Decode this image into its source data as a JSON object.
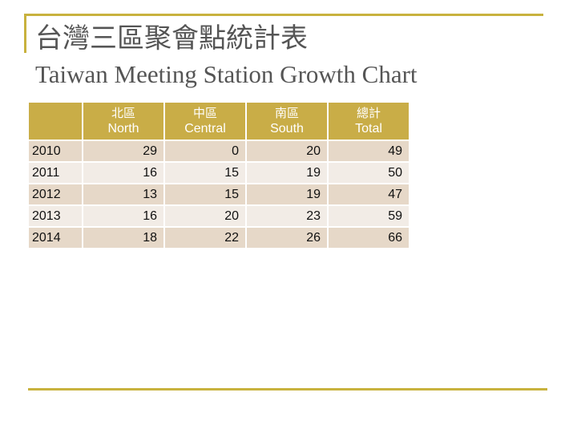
{
  "slide": {
    "title_cn": "台灣三區聚會點統計表",
    "title_en": "Taiwan Meeting Station Growth Chart"
  },
  "table": {
    "columns": [
      {
        "cn": "",
        "en": ""
      },
      {
        "cn": "北區",
        "en": "North"
      },
      {
        "cn": "中區",
        "en": "Central"
      },
      {
        "cn": "南區",
        "en": "South"
      },
      {
        "cn": "總計",
        "en": "Total"
      }
    ],
    "rows": [
      {
        "year": "2010",
        "north": "29",
        "central": "0",
        "south": "20",
        "total": "49"
      },
      {
        "year": "2011",
        "north": "16",
        "central": "15",
        "south": "19",
        "total": "50"
      },
      {
        "year": "2012",
        "north": "13",
        "central": "15",
        "south": "19",
        "total": "47"
      },
      {
        "year": "2013",
        "north": "16",
        "central": "20",
        "south": "23",
        "total": "59"
      },
      {
        "year": "2014",
        "north": "18",
        "central": "22",
        "south": "26",
        "total": "66"
      }
    ]
  },
  "colors": {
    "accent": "#c8b23e",
    "header_bg": "#c9ad47",
    "row_odd": "#e6d8c8",
    "row_even": "#f2ece6",
    "title_text": "#555555"
  }
}
